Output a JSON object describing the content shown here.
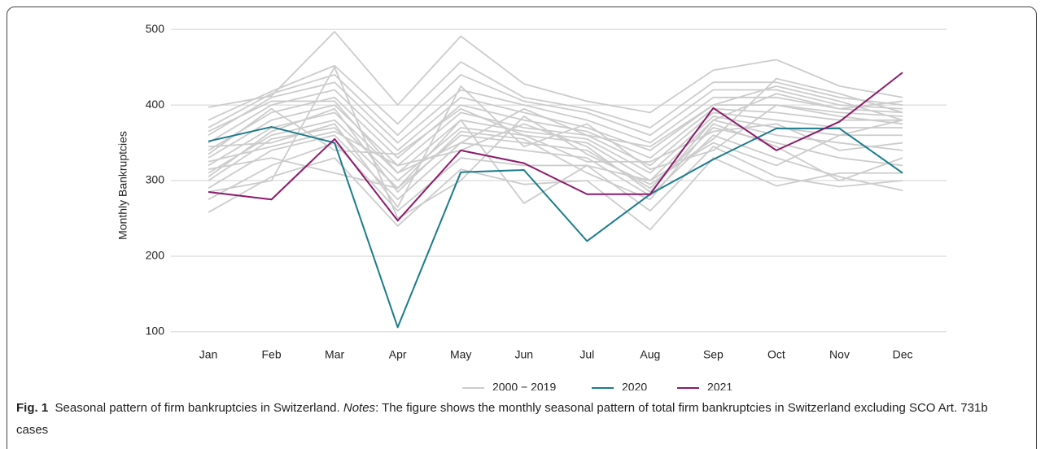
{
  "chart_data": {
    "type": "line",
    "y_label": "Monthly Bankruptcies",
    "categories": [
      "Jan",
      "Feb",
      "Mar",
      "Apr",
      "May",
      "Jun",
      "Jul",
      "Aug",
      "Sep",
      "Oct",
      "Nov",
      "Dec"
    ],
    "ylim": [
      87,
      512
    ],
    "yticks": [
      100,
      200,
      300,
      400,
      500
    ],
    "grid": true,
    "series": [
      {
        "name": "2000 − 2019",
        "color": "#cccccc",
        "values": [
          [
            258,
            305,
            330,
            240,
            315,
            295,
            300,
            235,
            330,
            293,
            310,
            310
          ],
          [
            275,
            320,
            350,
            260,
            330,
            320,
            320,
            260,
            345,
            305,
            292,
            300
          ],
          [
            290,
            340,
            360,
            275,
            350,
            340,
            330,
            280,
            360,
            330,
            305,
            287
          ],
          [
            300,
            355,
            370,
            290,
            360,
            350,
            340,
            290,
            370,
            350,
            330,
            320
          ],
          [
            310,
            360,
            380,
            300,
            370,
            360,
            350,
            300,
            380,
            360,
            350,
            340
          ],
          [
            320,
            370,
            390,
            310,
            380,
            365,
            355,
            310,
            385,
            370,
            360,
            360
          ],
          [
            330,
            380,
            400,
            320,
            390,
            370,
            360,
            320,
            390,
            380,
            370,
            370
          ],
          [
            340,
            390,
            410,
            330,
            400,
            380,
            365,
            330,
            395,
            390,
            380,
            380
          ],
          [
            350,
            400,
            420,
            340,
            410,
            390,
            370,
            340,
            400,
            400,
            390,
            385
          ],
          [
            360,
            410,
            430,
            350,
            420,
            400,
            380,
            350,
            410,
            410,
            395,
            390
          ],
          [
            370,
            415,
            440,
            360,
            440,
            405,
            390,
            360,
            420,
            420,
            400,
            395
          ],
          [
            380,
            418,
            452,
            375,
            457,
            410,
            395,
            370,
            430,
            430,
            410,
            400
          ],
          [
            397,
            412,
            497,
            400,
            491,
            428,
            405,
            390,
            446,
            460,
            425,
            410
          ],
          [
            315,
            330,
            310,
            290,
            380,
            270,
            320,
            300,
            350,
            320,
            360,
            380
          ],
          [
            325,
            345,
            365,
            320,
            340,
            375,
            345,
            285,
            380,
            415,
            395,
            405
          ],
          [
            305,
            365,
            395,
            285,
            365,
            355,
            310,
            275,
            375,
            345,
            300,
            330
          ],
          [
            285,
            300,
            450,
            250,
            300,
            385,
            335,
            295,
            355,
            435,
            415,
            390
          ],
          [
            345,
            350,
            375,
            265,
            425,
            345,
            375,
            315,
            340,
            400,
            385,
            375
          ],
          [
            335,
            395,
            340,
            335,
            395,
            360,
            325,
            325,
            365,
            375,
            340,
            350
          ],
          [
            365,
            405,
            405,
            310,
            350,
            395,
            360,
            345,
            400,
            425,
            405,
            380
          ]
        ]
      },
      {
        "name": "2020",
        "color": "#1b7b8c",
        "values": [
          352,
          371,
          350,
          106,
          311,
          314,
          220,
          282,
          328,
          369,
          369,
          310
        ]
      },
      {
        "name": "2021",
        "color": "#8c1a6a",
        "values": [
          285,
          275,
          355,
          247,
          340,
          323,
          282,
          282,
          396,
          340,
          378,
          443
        ]
      }
    ]
  },
  "caption": {
    "label": "Fig. 1",
    "title": "Seasonal pattern of firm bankruptcies in Switzerland.",
    "notes_label": "Notes",
    "notes_text": ": The figure shows the monthly seasonal pattern of total firm bankruptcies in Switzerland excluding SCO Art. 731b cases"
  }
}
